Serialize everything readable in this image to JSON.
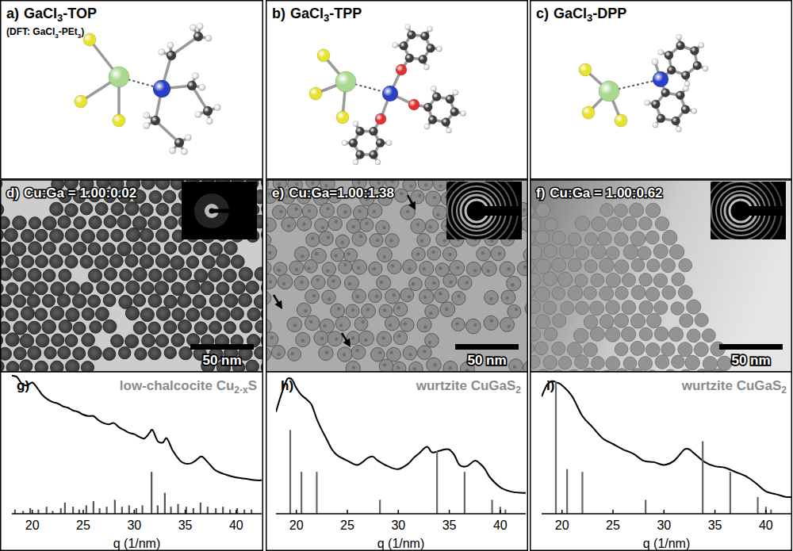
{
  "panels": [
    {
      "label": "a)",
      "title": "GaCl3-TOP",
      "note": "(DFT: GaCl3-PEt3)"
    },
    {
      "label": "b)",
      "title": "GaCl3-TPP"
    },
    {
      "label": "c)",
      "title": "GaCl3-DPP"
    }
  ],
  "tem": [
    {
      "label": "d)",
      "composition": "Cu:Ga = 1.00:0.02",
      "scale_bar": "50 nm"
    },
    {
      "label": "e)",
      "composition": "Cu:Ga=1.00:1.38",
      "scale_bar": "50 nm"
    },
    {
      "label": "f)",
      "composition": "Cu:Ga = 1.00:0.62",
      "scale_bar": "50 nm"
    }
  ],
  "chart_data": [
    {
      "type": "line",
      "title": "low-chalcocite Cu2-xS",
      "annotations": [
        "g)"
      ],
      "xlabel": "q (1/nm)",
      "xlim": [
        18,
        42.5
      ],
      "xticks": [
        20,
        25,
        30,
        35,
        40
      ],
      "ylim": [
        0,
        1
      ],
      "tick_labels": "x",
      "series": [
        {
          "type": "line",
          "color": "#000000",
          "x": [
            18,
            18.5,
            19,
            19.5,
            20,
            20.5,
            21,
            21.5,
            22,
            22.5,
            23,
            23.5,
            24,
            24.5,
            25,
            25.5,
            26,
            26.5,
            27,
            27.5,
            28,
            28.5,
            29,
            29.5,
            30,
            30.5,
            31,
            31.5,
            31.8,
            32.3,
            32.8,
            33.2,
            33.8,
            34.5,
            35,
            35.5,
            36,
            36.6,
            37.2,
            38,
            39,
            40,
            41,
            42,
            42.5
          ],
          "values": [
            0.99,
            0.98,
            0.93,
            0.92,
            0.94,
            0.9,
            0.85,
            0.82,
            0.8,
            0.79,
            0.77,
            0.76,
            0.74,
            0.73,
            0.71,
            0.7,
            0.7,
            0.67,
            0.65,
            0.64,
            0.65,
            0.62,
            0.6,
            0.58,
            0.57,
            0.55,
            0.54,
            0.58,
            0.6,
            0.52,
            0.51,
            0.54,
            0.45,
            0.38,
            0.36,
            0.36,
            0.38,
            0.41,
            0.37,
            0.31,
            0.28,
            0.26,
            0.25,
            0.24,
            0.24
          ]
        },
        {
          "type": "bar",
          "color": "#555555",
          "x": [
            18.3,
            19.1,
            19.8,
            20.6,
            21.4,
            22.0,
            22.8,
            23.2,
            24.0,
            24.6,
            25.3,
            26.0,
            26.6,
            27.3,
            28.1,
            28.8,
            29.5,
            30.2,
            30.8,
            31.7,
            32.3,
            33.0,
            33.6,
            34.3,
            35.1,
            35.8,
            36.5,
            37.2,
            38.0,
            38.7,
            39.4,
            40.1,
            40.8,
            41.5
          ],
          "values": [
            0.03,
            0.02,
            0.04,
            0.03,
            0.05,
            0.02,
            0.04,
            0.08,
            0.05,
            0.03,
            0.06,
            0.09,
            0.04,
            0.05,
            0.1,
            0.05,
            0.06,
            0.04,
            0.06,
            0.3,
            0.06,
            0.15,
            0.05,
            0.07,
            0.05,
            0.04,
            0.08,
            0.05,
            0.04,
            0.05,
            0.03,
            0.04,
            0.03,
            0.03
          ]
        }
      ]
    },
    {
      "type": "line",
      "title": "wurtzite CuGaS2",
      "annotations": [
        "h)"
      ],
      "xlabel": "q (1/nm)",
      "xlim": [
        18,
        42.5
      ],
      "xticks": [
        20,
        25,
        30,
        35,
        40
      ],
      "ylim": [
        0,
        1
      ],
      "tick_labels": "x",
      "series": [
        {
          "type": "line",
          "color": "#000000",
          "x": [
            18,
            18.5,
            19,
            19.2,
            19.6,
            20,
            20.5,
            21,
            21.5,
            22,
            22.5,
            23,
            23.5,
            24,
            25,
            26,
            27,
            27.5,
            28,
            29,
            30,
            31,
            31.5,
            32,
            32.8,
            33.3,
            34,
            34.5,
            35,
            35.5,
            36,
            36.7,
            37.5,
            38,
            38.5,
            39,
            40,
            41,
            42,
            42.5
          ],
          "values": [
            0.73,
            0.85,
            0.95,
            0.97,
            0.96,
            0.9,
            0.85,
            0.82,
            0.78,
            0.68,
            0.6,
            0.53,
            0.46,
            0.42,
            0.38,
            0.35,
            0.4,
            0.41,
            0.38,
            0.34,
            0.32,
            0.36,
            0.4,
            0.43,
            0.48,
            0.44,
            0.45,
            0.46,
            0.46,
            0.42,
            0.35,
            0.34,
            0.38,
            0.36,
            0.32,
            0.26,
            0.19,
            0.16,
            0.15,
            0.15
          ]
        },
        {
          "type": "bar",
          "color": "#666666",
          "x": [
            19.4,
            20.5,
            22.0,
            28.2,
            33.8,
            36.5,
            39.2,
            40.0,
            40.5
          ],
          "values": [
            0.6,
            0.3,
            0.3,
            0.1,
            0.45,
            0.3,
            0.1,
            0.05,
            0.03
          ]
        }
      ]
    },
    {
      "type": "line",
      "title": "wurtzite CuGaS2",
      "annotations": [
        "i)"
      ],
      "xlabel": "q (1/nm)",
      "xlim": [
        18,
        42.5
      ],
      "xticks": [
        20,
        25,
        30,
        35,
        40
      ],
      "ylim": [
        0,
        1
      ],
      "tick_labels": "x",
      "series": [
        {
          "type": "line",
          "color": "#000000",
          "x": [
            18,
            18.5,
            19,
            19.5,
            20,
            21,
            22,
            23,
            24,
            25,
            26,
            27,
            28,
            29,
            30,
            31,
            32,
            32.5,
            33,
            34,
            35,
            36,
            37,
            38,
            39,
            40,
            41,
            42,
            42.5
          ],
          "values": [
            0.84,
            0.92,
            0.95,
            0.94,
            0.92,
            0.84,
            0.7,
            0.62,
            0.54,
            0.5,
            0.46,
            0.43,
            0.38,
            0.37,
            0.35,
            0.38,
            0.46,
            0.46,
            0.43,
            0.37,
            0.34,
            0.33,
            0.3,
            0.27,
            0.22,
            0.16,
            0.14,
            0.12,
            0.12
          ]
        },
        {
          "type": "bar",
          "color": "#666666",
          "x": [
            19.4,
            20.5,
            22.0,
            28.2,
            33.8,
            36.5,
            39.2,
            40.0,
            40.5
          ],
          "values": [
            0.95,
            0.32,
            0.3,
            0.1,
            0.52,
            0.3,
            0.12,
            0.05,
            0.03
          ]
        }
      ]
    }
  ]
}
